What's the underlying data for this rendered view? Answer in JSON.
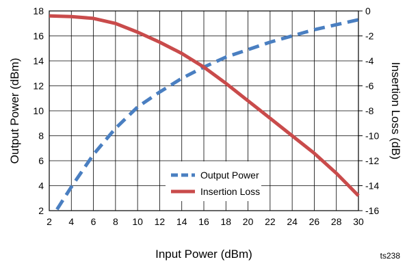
{
  "chart_data": {
    "type": "line",
    "title": "",
    "xlabel": "Input Power (dBm)",
    "ylabel": "Output Power (dBm)",
    "y2label": "Insertion Loss (dB)",
    "xlim": [
      2,
      30
    ],
    "ylim": [
      2,
      18
    ],
    "y2lim": [
      -16,
      0
    ],
    "x_ticks": [
      2,
      4,
      6,
      8,
      10,
      12,
      14,
      16,
      18,
      20,
      22,
      24,
      26,
      28,
      30
    ],
    "y_ticks": [
      2,
      4,
      6,
      8,
      10,
      12,
      14,
      16,
      18
    ],
    "y2_ticks": [
      0,
      -2,
      -4,
      -6,
      -8,
      -10,
      -12,
      -14,
      -16
    ],
    "grid": true,
    "legend_position": "lower-center",
    "series": [
      {
        "name": "Output Power",
        "axis": "left",
        "style": "dashed",
        "color": "#4a7fc1",
        "points": [
          [
            2.7,
            2.1
          ],
          [
            4,
            3.9
          ],
          [
            6,
            6.5
          ],
          [
            8,
            8.6
          ],
          [
            10,
            10.3
          ],
          [
            12,
            11.5
          ],
          [
            14,
            12.6
          ],
          [
            16,
            13.5
          ],
          [
            18,
            14.3
          ],
          [
            20,
            14.9
          ],
          [
            22,
            15.5
          ],
          [
            24,
            16.0
          ],
          [
            26,
            16.5
          ],
          [
            28,
            16.9
          ],
          [
            30,
            17.3
          ]
        ]
      },
      {
        "name": "Insertion Loss",
        "axis": "right",
        "style": "solid",
        "color": "#c94b4b",
        "points": [
          [
            2,
            -0.4
          ],
          [
            4,
            -0.45
          ],
          [
            6,
            -0.6
          ],
          [
            8,
            -1.0
          ],
          [
            10,
            -1.7
          ],
          [
            12,
            -2.5
          ],
          [
            14,
            -3.4
          ],
          [
            16,
            -4.5
          ],
          [
            18,
            -5.8
          ],
          [
            20,
            -7.2
          ],
          [
            22,
            -8.6
          ],
          [
            24,
            -10.0
          ],
          [
            26,
            -11.4
          ],
          [
            28,
            -13.0
          ],
          [
            30,
            -14.8
          ]
        ]
      }
    ],
    "annotation": "ts238"
  }
}
